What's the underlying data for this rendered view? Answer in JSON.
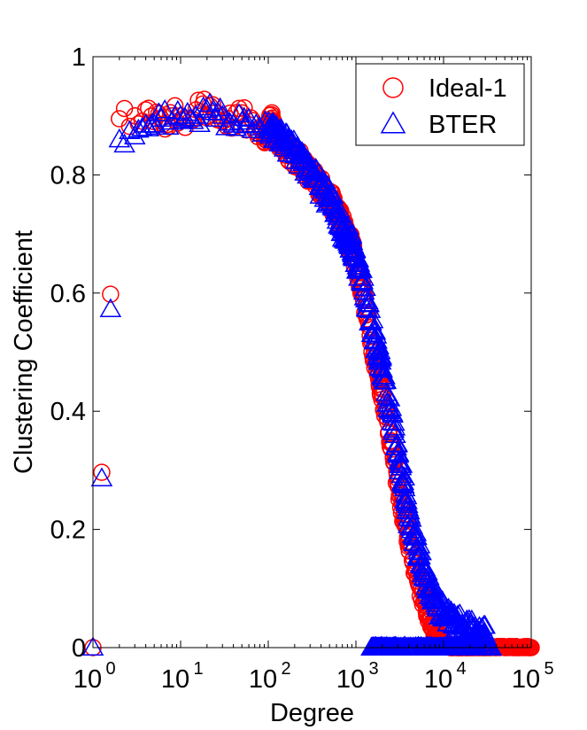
{
  "chart_data": {
    "type": "scatter",
    "xscale": "log",
    "xlim": [
      1,
      100000
    ],
    "ylim": [
      0,
      1
    ],
    "xlabel": "Degree",
    "ylabel": "Clustering Coefficient",
    "x_ticks": [
      {
        "base": "10",
        "exp": "0",
        "value": 1
      },
      {
        "base": "10",
        "exp": "1",
        "value": 10
      },
      {
        "base": "10",
        "exp": "2",
        "value": 100
      },
      {
        "base": "10",
        "exp": "3",
        "value": 1000
      },
      {
        "base": "10",
        "exp": "4",
        "value": 10000
      },
      {
        "base": "10",
        "exp": "5",
        "value": 100000
      }
    ],
    "y_ticks": [
      {
        "label": "0",
        "value": 0
      },
      {
        "label": "0.2",
        "value": 0.2
      },
      {
        "label": "0.4",
        "value": 0.4
      },
      {
        "label": "0.6",
        "value": 0.6
      },
      {
        "label": "0.8",
        "value": 0.8
      },
      {
        "label": "1",
        "value": 1
      }
    ],
    "grid": false,
    "legend": "top-right",
    "series": [
      {
        "name": "Ideal-1",
        "marker": "circle",
        "color": "#ff0000",
        "points": [
          [
            1,
            0
          ],
          [
            2,
            0.895
          ],
          [
            3,
            0.9
          ],
          [
            4,
            0.91
          ],
          [
            5,
            0.89
          ],
          [
            6,
            0.895
          ],
          [
            7,
            0.885
          ],
          [
            8,
            0.9
          ],
          [
            10,
            0.9
          ],
          [
            12,
            0.895
          ],
          [
            15,
            0.91
          ],
          [
            18,
            0.92
          ],
          [
            20,
            0.9
          ],
          [
            25,
            0.905
          ],
          [
            30,
            0.89
          ],
          [
            35,
            0.895
          ],
          [
            40,
            0.88
          ],
          [
            50,
            0.905
          ],
          [
            60,
            0.885
          ],
          [
            70,
            0.875
          ],
          [
            80,
            0.88
          ],
          [
            90,
            0.865
          ],
          [
            100,
            0.87
          ],
          [
            110,
            0.905
          ],
          [
            120,
            0.86
          ],
          [
            150,
            0.85
          ],
          [
            200,
            0.83
          ],
          [
            250,
            0.82
          ],
          [
            300,
            0.8
          ],
          [
            350,
            0.79
          ],
          [
            400,
            0.78
          ],
          [
            500,
            0.76
          ],
          [
            600,
            0.74
          ],
          [
            700,
            0.72
          ],
          [
            800,
            0.69
          ],
          [
            900,
            0.68
          ],
          [
            1000,
            0.65
          ],
          [
            1200,
            0.6
          ],
          [
            1500,
            0.52
          ],
          [
            1800,
            0.46
          ],
          [
            2000,
            0.43
          ],
          [
            2500,
            0.35
          ],
          [
            3000,
            0.28
          ],
          [
            3500,
            0.22
          ],
          [
            4000,
            0.18
          ],
          [
            5000,
            0.12
          ],
          [
            6000,
            0.08
          ],
          [
            7000,
            0.05
          ],
          [
            8000,
            0.03
          ],
          [
            9000,
            0.02
          ],
          [
            10000,
            0.01
          ],
          [
            12000,
            0
          ],
          [
            15000,
            0
          ],
          [
            20000,
            0
          ],
          [
            30000,
            0
          ],
          [
            50000,
            0
          ],
          [
            70000,
            0
          ],
          [
            100000,
            0
          ]
        ]
      },
      {
        "name": "BTER",
        "marker": "triangle",
        "color": "#0000ff",
        "points": [
          [
            1,
            0
          ],
          [
            2,
            0.86
          ],
          [
            3,
            0.865
          ],
          [
            4,
            0.885
          ],
          [
            5,
            0.885
          ],
          [
            6,
            0.895
          ],
          [
            8,
            0.89
          ],
          [
            10,
            0.9
          ],
          [
            12,
            0.905
          ],
          [
            15,
            0.9
          ],
          [
            20,
            0.91
          ],
          [
            25,
            0.895
          ],
          [
            30,
            0.9
          ],
          [
            40,
            0.885
          ],
          [
            50,
            0.89
          ],
          [
            60,
            0.895
          ],
          [
            80,
            0.88
          ],
          [
            100,
            0.875
          ],
          [
            120,
            0.87
          ],
          [
            150,
            0.86
          ],
          [
            200,
            0.84
          ],
          [
            250,
            0.82
          ],
          [
            300,
            0.81
          ],
          [
            400,
            0.78
          ],
          [
            500,
            0.76
          ],
          [
            600,
            0.74
          ],
          [
            700,
            0.71
          ],
          [
            800,
            0.7
          ],
          [
            900,
            0.68
          ],
          [
            1000,
            0.66
          ],
          [
            1200,
            0.62
          ],
          [
            1500,
            0.55
          ],
          [
            1800,
            0.5
          ],
          [
            2000,
            0.47
          ],
          [
            2500,
            0.4
          ],
          [
            3000,
            0.33
          ],
          [
            3500,
            0.28
          ],
          [
            4000,
            0.22
          ],
          [
            5000,
            0.17
          ],
          [
            6000,
            0.13
          ],
          [
            7000,
            0.1
          ],
          [
            8000,
            0.08
          ],
          [
            10000,
            0.06
          ],
          [
            12000,
            0.05
          ],
          [
            15000,
            0.04
          ],
          [
            20000,
            0.03
          ],
          [
            25000,
            0.025
          ],
          [
            30000,
            0.02
          ],
          [
            1500,
            0
          ],
          [
            2000,
            0
          ],
          [
            3000,
            0
          ],
          [
            5000,
            0
          ],
          [
            8000,
            0
          ],
          [
            12000,
            0
          ],
          [
            20000,
            0
          ],
          [
            35000,
            0
          ]
        ]
      }
    ]
  }
}
